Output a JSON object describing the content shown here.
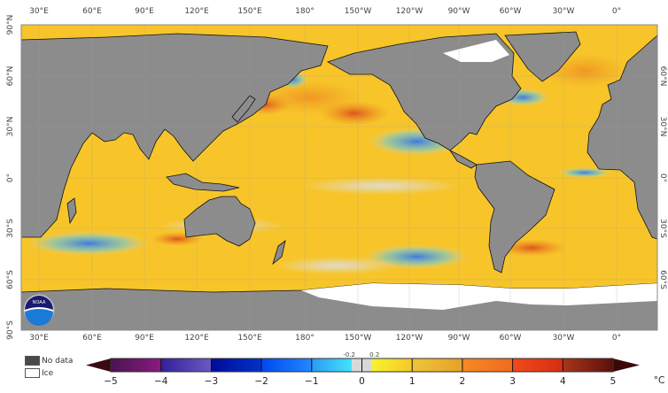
{
  "map": {
    "top_lon_labels": [
      "30°E",
      "60°E",
      "90°E",
      "120°E",
      "150°E",
      "180°",
      "150°W",
      "120°W",
      "90°W",
      "60°W",
      "30°W",
      "0°"
    ],
    "bottom_lon_labels": [
      "30°E",
      "60°E",
      "90°E",
      "120°E",
      "150°E",
      "180°",
      "150°W",
      "120°W",
      "90°W",
      "60°W",
      "30°W",
      "0°"
    ],
    "left_lat_labels": [
      "90°N",
      "60°N",
      "30°N",
      "0°",
      "30°S",
      "60°S",
      "90°S"
    ],
    "right_lat_labels": [
      "60°N",
      "30°N",
      "0°",
      "30°S",
      "60°S"
    ],
    "logo_text": "NOAA",
    "colors": {
      "land": "#8c8c8c",
      "ocean_base": "#f7c52a",
      "ice": "#ffffff"
    }
  },
  "legend": {
    "no_data_label": "No data",
    "no_data_color": "#4a4a4a",
    "ice_label": "Ice",
    "ice_color": "#ffffff"
  },
  "colorbar": {
    "unit": "°C",
    "range": [
      -5,
      5
    ],
    "ticks": [
      "−5",
      "−4",
      "−3",
      "−2",
      "−1",
      "0",
      "1",
      "2",
      "3",
      "4",
      "5"
    ],
    "small_ticks": [
      "-0.2",
      "0.2"
    ],
    "segments": [
      {
        "from": -5,
        "to": -4,
        "colors": [
          "#4a1450",
          "#8a1a80"
        ]
      },
      {
        "from": -4,
        "to": -3,
        "colors": [
          "#32209a",
          "#6a5ac4"
        ]
      },
      {
        "from": -3,
        "to": -2,
        "colors": [
          "#000c96",
          "#0032c8"
        ]
      },
      {
        "from": -2,
        "to": -1,
        "colors": [
          "#0048f0",
          "#2288ff"
        ]
      },
      {
        "from": -1,
        "to": -0.2,
        "colors": [
          "#2a9af0",
          "#44e4ff"
        ]
      },
      {
        "from": -0.2,
        "to": 0.2,
        "colors": [
          "#d8d8d8",
          "#d8d8d8"
        ]
      },
      {
        "from": 0.2,
        "to": 1,
        "colors": [
          "#f6f22e",
          "#f6c82a"
        ]
      },
      {
        "from": 1,
        "to": 2,
        "colors": [
          "#eec43a",
          "#e6a02a"
        ]
      },
      {
        "from": 2,
        "to": 3,
        "colors": [
          "#f58a24",
          "#f06a20"
        ]
      },
      {
        "from": 3,
        "to": 4,
        "colors": [
          "#f24a1a",
          "#d42e12"
        ]
      },
      {
        "from": 4,
        "to": 5,
        "colors": [
          "#a8361a",
          "#5c100a"
        ]
      }
    ],
    "under_color": "#3a0a10",
    "over_color": "#3a0808"
  }
}
